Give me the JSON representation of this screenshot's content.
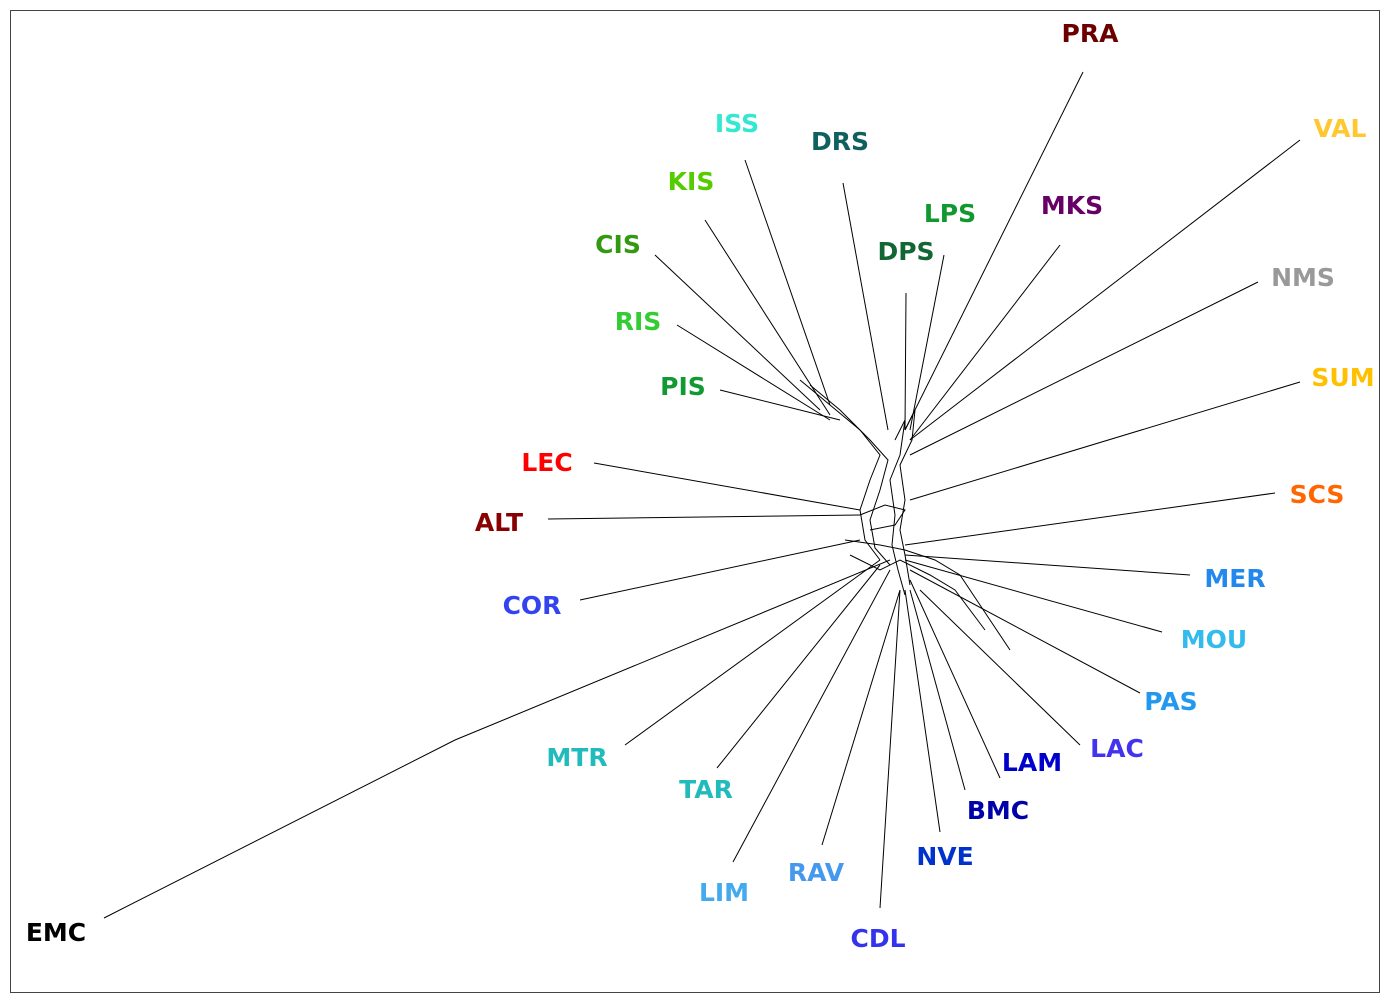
{
  "nodes": [
    {
      "label": "PRA",
      "color": "#6b0000"
    },
    {
      "label": "ISS",
      "color": "#33e8d0"
    },
    {
      "label": "DRS",
      "color": "#106060"
    },
    {
      "label": "VAL",
      "color": "#ffc830"
    },
    {
      "label": "KIS",
      "color": "#55cc00"
    },
    {
      "label": "LPS",
      "color": "#119930"
    },
    {
      "label": "MKS",
      "color": "#660066"
    },
    {
      "label": "DPS",
      "color": "#116633"
    },
    {
      "label": "CIS",
      "color": "#339911"
    },
    {
      "label": "NMS",
      "color": "#999999"
    },
    {
      "label": "RIS",
      "color": "#33cc33"
    },
    {
      "label": "SUM",
      "color": "#ffc000"
    },
    {
      "label": "PIS",
      "color": "#119933"
    },
    {
      "label": "LEC",
      "color": "#ff0000"
    },
    {
      "label": "SCS",
      "color": "#ff6600"
    },
    {
      "label": "ALT",
      "color": "#880000"
    },
    {
      "label": "MER",
      "color": "#2288ee"
    },
    {
      "label": "COR",
      "color": "#3344ee"
    },
    {
      "label": "MOU",
      "color": "#33bbee"
    },
    {
      "label": "PAS",
      "color": "#2299ee"
    },
    {
      "label": "MTR",
      "color": "#22bbbb"
    },
    {
      "label": "LAM",
      "color": "#0000cc"
    },
    {
      "label": "LAC",
      "color": "#4433ee"
    },
    {
      "label": "TAR",
      "color": "#22bbbb"
    },
    {
      "label": "BMC",
      "color": "#0000aa"
    },
    {
      "label": "NVE",
      "color": "#0033cc"
    },
    {
      "label": "RAV",
      "color": "#4499ee"
    },
    {
      "label": "LIM",
      "color": "#44aaee"
    },
    {
      "label": "CDL",
      "color": "#3333ee"
    },
    {
      "label": "EMC",
      "color": "#000000"
    }
  ]
}
